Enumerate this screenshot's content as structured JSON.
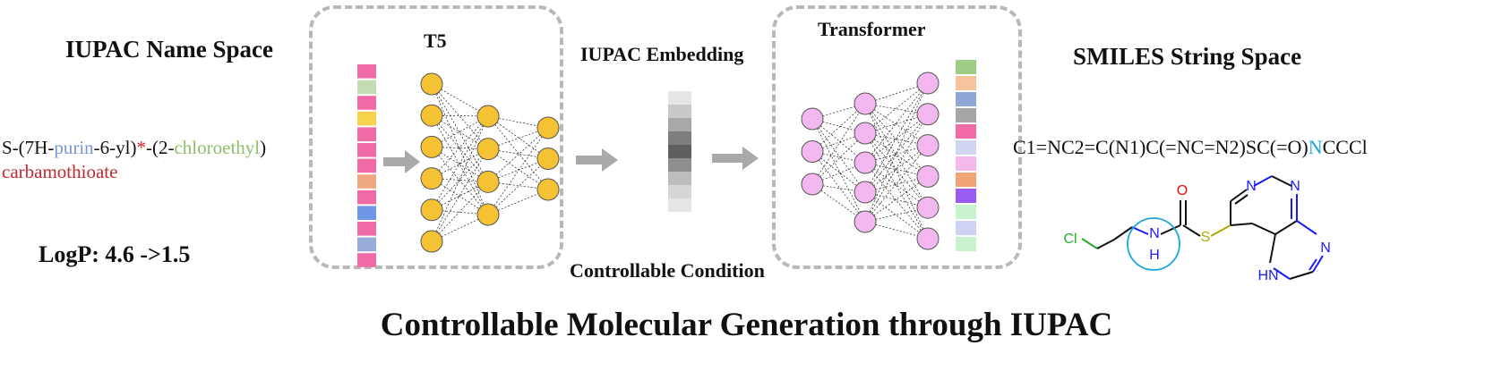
{
  "left": {
    "heading": "IUPAC Name Space",
    "name_parts": [
      {
        "text": "S-(7H-",
        "color": "#111111"
      },
      {
        "text": "purin",
        "color": "#7b95d3"
      },
      {
        "text": "-6-yl)",
        "color": "#111111"
      },
      {
        "text": "*",
        "color": "#e02020"
      },
      {
        "text": "-(2-",
        "color": "#111111"
      },
      {
        "text": "chloroethyl",
        "color": "#8fbf6a"
      },
      {
        "text": ")",
        "color": "#111111"
      }
    ],
    "name_line2": "carbamothioate",
    "name_line2_color": "#c0282c",
    "logp": "LogP: 4.6 ->1.5"
  },
  "t5": {
    "label": "T5",
    "token_colors": [
      "#f06aa5",
      "#c3dcb3",
      "#f06aa5",
      "#f8d34e",
      "#f06aa5",
      "#f06aa5",
      "#f06aa5",
      "#f0a880",
      "#f06aa5",
      "#6f97e8",
      "#f06aa5",
      "#97acd8",
      "#f06aa5"
    ],
    "node_color": "#f5c233"
  },
  "middle": {
    "embedding_label": "IUPAC Embedding",
    "embedding_shades": [
      "#e6e6e6",
      "#c9c9c9",
      "#a8a8a8",
      "#7d7d7d",
      "#5f5f5f",
      "#8f8f8f",
      "#bdbdbd",
      "#d6d6d6",
      "#e6e6e6"
    ],
    "condition_label": "Controllable Condition"
  },
  "transformer": {
    "label": "Transformer",
    "token_colors": [
      "#9fcd86",
      "#f6c39e",
      "#8fa6d6",
      "#a6a6a6",
      "#f06aa5",
      "#d3d6f2",
      "#f3b8ec",
      "#f0a478",
      "#9a5cf0",
      "#c9f2cf",
      "#cfd2f4",
      "#c9f2cf"
    ],
    "node_color": "#f4b8f0"
  },
  "right": {
    "heading": "SMILES String Space",
    "smiles_parts": [
      {
        "text": "C1=NC2=C(N1)C(=NC=N2)SC(=O)",
        "color": "#111111"
      },
      {
        "text": "N",
        "color": "#1aa7e0"
      },
      {
        "text": "CCCl",
        "color": "#111111"
      }
    ],
    "molecule": {
      "atoms": [
        "Cl",
        "N",
        "H",
        "O",
        "S",
        "N",
        "N",
        "N",
        "N",
        "HN"
      ],
      "colors": {
        "Cl": "#22b022",
        "N": "#1a1aff",
        "O": "#e01010",
        "S": "#b0a800",
        "bond": "#111111",
        "highlight": "#1aa7e0"
      }
    }
  },
  "title": "Controllable Molecular Generation through IUPAC"
}
